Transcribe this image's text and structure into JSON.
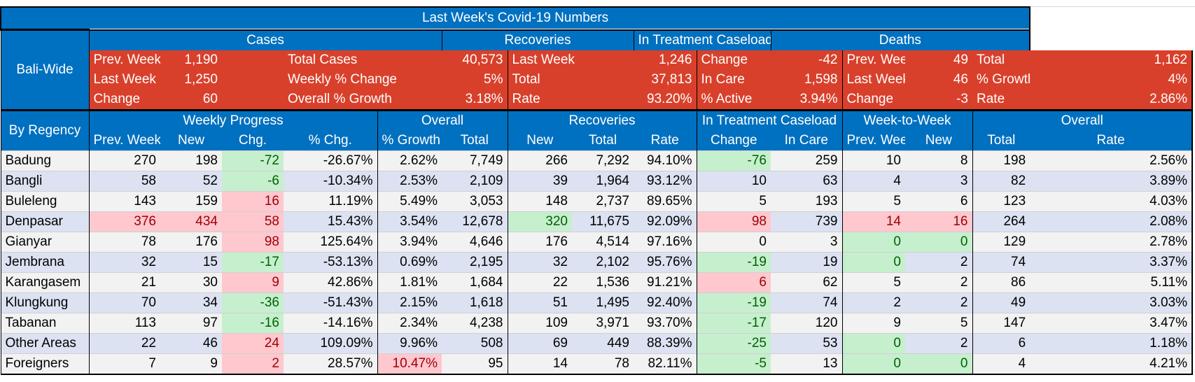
{
  "title": "Last Week's Covid-19 Numbers",
  "bali": {
    "label": "Bali-Wide",
    "cases_header": "Cases",
    "recoveries_header": "Recoveries",
    "treatment_header": "In Treatment Caseload",
    "deaths_header": "Deaths",
    "rows": [
      [
        "Prev. Week",
        "1,190",
        "Total Cases",
        "40,573",
        "Last Week",
        "1,246",
        "Change",
        "-42",
        "Prev. Week",
        "49",
        "Total",
        "1,162"
      ],
      [
        "Last Week",
        "1,250",
        "Weekly % Change",
        "5%",
        "Total",
        "37,813",
        "In Care",
        "1,598",
        "Last Week",
        "46",
        "% Growth",
        "4%"
      ],
      [
        "Change",
        "60",
        "Overall % Growth",
        "3.18%",
        "Rate",
        "93.20%",
        "% Active",
        "3.94%",
        "Change",
        "-3",
        "Rate",
        "2.86%"
      ]
    ]
  },
  "regency": {
    "label": "By Regency",
    "group_headers": [
      "Weekly Progress",
      "Overall",
      "Recoveries",
      "In Treatment Caseload",
      "Week-to-Week",
      "Overall"
    ],
    "columns": [
      "Prev. Week",
      "New",
      "Chg.",
      "% Chg.",
      "% Growth",
      "Total",
      "New",
      "Total",
      "Rate",
      "Change",
      "In Care",
      "Prev. Week",
      "New",
      "Total",
      "Rate"
    ],
    "rows": [
      {
        "name": "Badung",
        "v": [
          "270",
          "198",
          "-72",
          "-26.67%",
          "2.62%",
          "7,749",
          "266",
          "7,292",
          "94.10%",
          "-76",
          "259",
          "10",
          "8",
          "198",
          "2.56%"
        ]
      },
      {
        "name": "Bangli",
        "v": [
          "58",
          "52",
          "-6",
          "-10.34%",
          "2.53%",
          "2,109",
          "39",
          "1,964",
          "93.12%",
          "10",
          "63",
          "4",
          "3",
          "82",
          "3.89%"
        ]
      },
      {
        "name": "Buleleng",
        "v": [
          "143",
          "159",
          "16",
          "11.19%",
          "5.49%",
          "3,053",
          "148",
          "2,737",
          "89.65%",
          "5",
          "193",
          "5",
          "6",
          "123",
          "4.03%"
        ]
      },
      {
        "name": "Denpasar",
        "v": [
          "376",
          "434",
          "58",
          "15.43%",
          "3.54%",
          "12,678",
          "320",
          "11,675",
          "92.09%",
          "98",
          "739",
          "14",
          "16",
          "264",
          "2.08%"
        ]
      },
      {
        "name": "Gianyar",
        "v": [
          "78",
          "176",
          "98",
          "125.64%",
          "3.94%",
          "4,646",
          "176",
          "4,514",
          "97.16%",
          "0",
          "3",
          "0",
          "0",
          "129",
          "2.78%"
        ]
      },
      {
        "name": "Jembrana",
        "v": [
          "32",
          "15",
          "-17",
          "-53.13%",
          "0.69%",
          "2,195",
          "32",
          "2,102",
          "95.76%",
          "-19",
          "19",
          "0",
          "2",
          "74",
          "3.37%"
        ]
      },
      {
        "name": "Karangasem",
        "v": [
          "21",
          "30",
          "9",
          "42.86%",
          "1.81%",
          "1,684",
          "22",
          "1,536",
          "91.21%",
          "6",
          "62",
          "5",
          "2",
          "86",
          "5.11%"
        ]
      },
      {
        "name": "Klungkung",
        "v": [
          "70",
          "34",
          "-36",
          "-51.43%",
          "2.15%",
          "1,618",
          "51",
          "1,495",
          "92.40%",
          "-19",
          "74",
          "2",
          "2",
          "49",
          "3.03%"
        ]
      },
      {
        "name": "Tabanan",
        "v": [
          "113",
          "97",
          "-16",
          "-14.16%",
          "2.34%",
          "4,238",
          "109",
          "3,971",
          "93.70%",
          "-17",
          "120",
          "9",
          "5",
          "147",
          "3.47%"
        ]
      },
      {
        "name": "Other Areas",
        "v": [
          "22",
          "46",
          "24",
          "109.09%",
          "9.96%",
          "508",
          "69",
          "449",
          "88.39%",
          "-25",
          "53",
          "0",
          "2",
          "6",
          "1.18%"
        ]
      },
      {
        "name": "Foreigners",
        "v": [
          "7",
          "9",
          "2",
          "28.57%",
          "10.47%",
          "95",
          "14",
          "78",
          "82.11%",
          "-5",
          "13",
          "0",
          "0",
          "4",
          "4.21%"
        ]
      }
    ]
  }
}
